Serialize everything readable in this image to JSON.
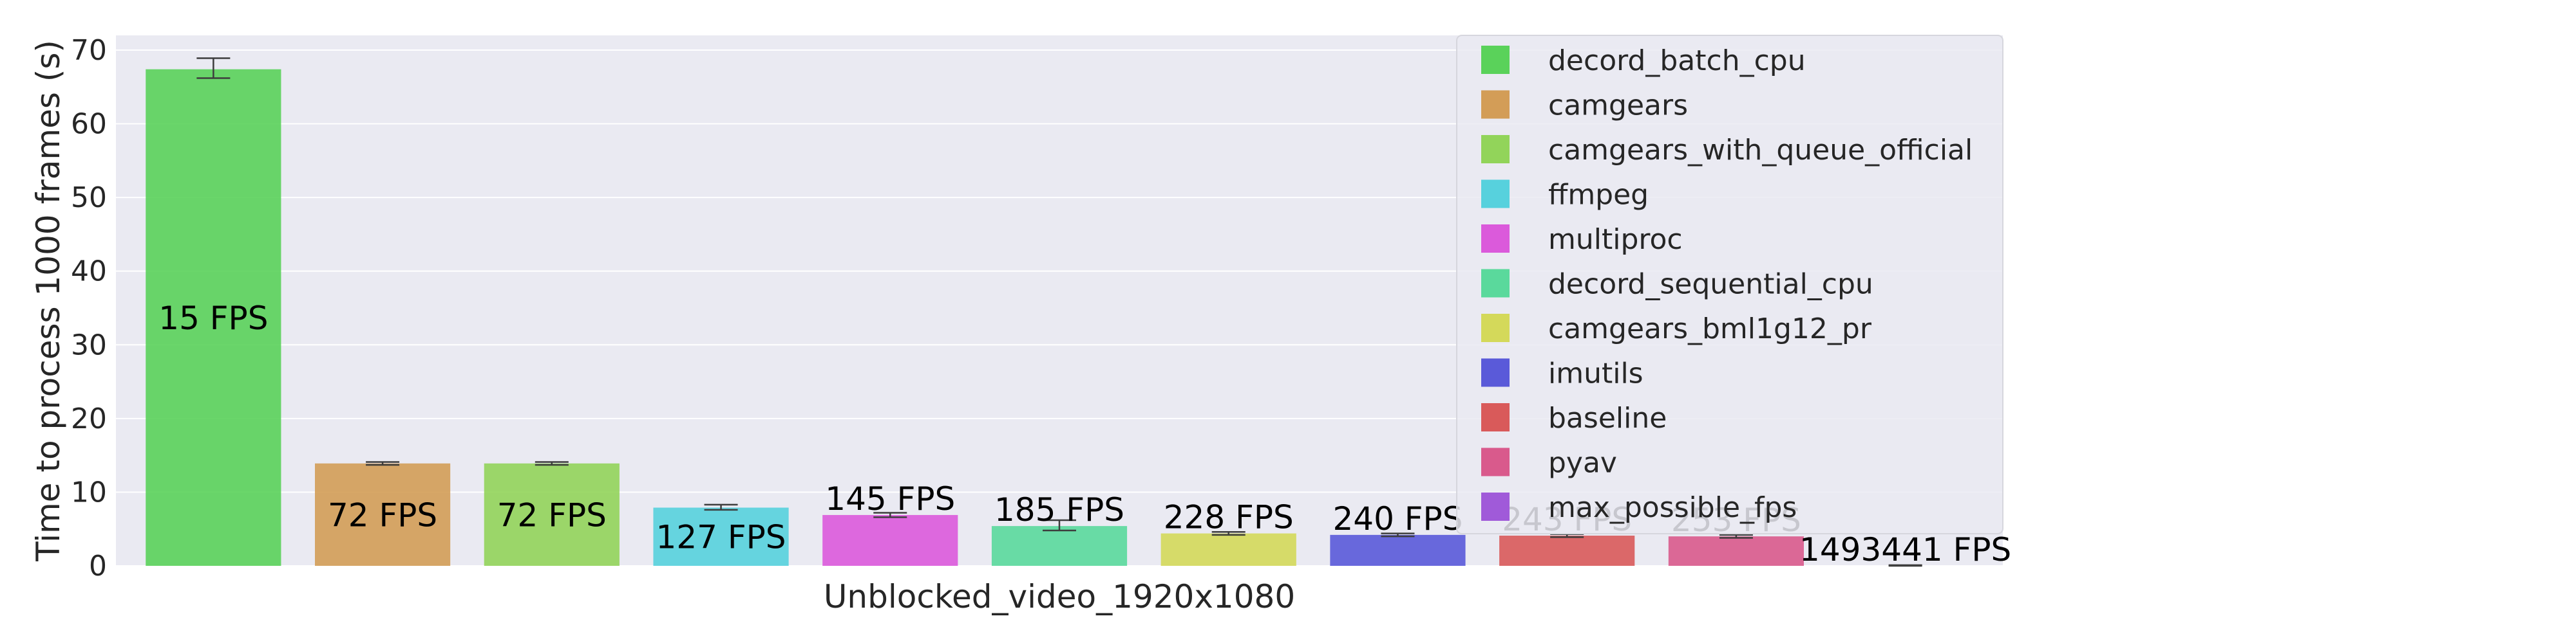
{
  "chart_data": {
    "type": "bar",
    "title": "",
    "xlabel": "Unblocked_video_1920x1080",
    "ylabel": "Time to process 1000 frames (s)",
    "ylim": [
      0,
      72
    ],
    "yticks": [
      0,
      10,
      20,
      30,
      40,
      50,
      60,
      70
    ],
    "grid": true,
    "legend_position": "top-right",
    "series": [
      {
        "name": "decord_batch_cpu",
        "value": 67.4,
        "err": [
          66.2,
          68.9
        ],
        "label": "15 FPS",
        "color": "#5ad25a"
      },
      {
        "name": "camgears",
        "value": 13.9,
        "err": [
          13.7,
          14.1
        ],
        "label": "72 FPS",
        "color": "#d39d57"
      },
      {
        "name": "camgears_with_queue_official",
        "value": 13.9,
        "err": [
          13.7,
          14.1
        ],
        "label": "72 FPS",
        "color": "#92d45a"
      },
      {
        "name": "ffmpeg",
        "value": 7.9,
        "err": [
          7.6,
          8.3
        ],
        "label": "127 FPS",
        "color": "#57d1dd"
      },
      {
        "name": "multiproc",
        "value": 6.9,
        "err": [
          6.6,
          7.2
        ],
        "label": "145 FPS",
        "color": "#db5adb"
      },
      {
        "name": "decord_sequential_cpu",
        "value": 5.4,
        "err": [
          4.8,
          6.2
        ],
        "label": "185 FPS",
        "color": "#5ad99c"
      },
      {
        "name": "camgears_bml1g12_pr",
        "value": 4.4,
        "err": [
          4.2,
          4.6
        ],
        "label": "228 FPS",
        "color": "#d4d95a"
      },
      {
        "name": "imutils",
        "value": 4.2,
        "err": [
          4.0,
          4.4
        ],
        "label": "240 FPS",
        "color": "#5a5ad9"
      },
      {
        "name": "baseline",
        "value": 4.1,
        "err": [
          3.9,
          4.3
        ],
        "label": "243 FPS",
        "color": "#d95a5a"
      },
      {
        "name": "pyav",
        "value": 4.0,
        "err": [
          3.8,
          4.2
        ],
        "label": "253 FPS",
        "color": "#d95a8c"
      },
      {
        "name": "max_possible_fps",
        "value": 0.001,
        "err": [
          0,
          0.1
        ],
        "label": "1493441 FPS",
        "color": "#a05ad9"
      }
    ]
  }
}
